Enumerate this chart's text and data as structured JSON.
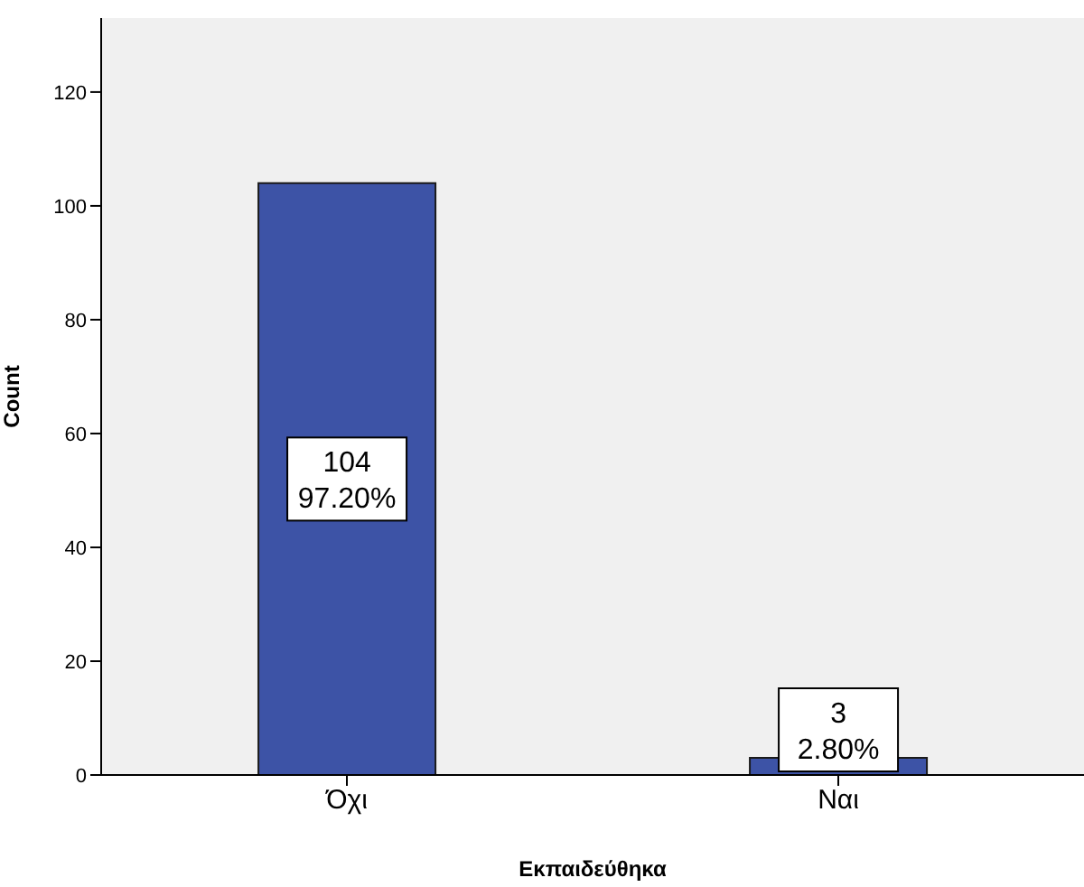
{
  "chart_data": {
    "type": "bar",
    "categories": [
      "Όχι",
      "Ναι"
    ],
    "values": [
      104,
      3
    ],
    "color": "#3d53a6",
    "value_labels": [
      "104\n97.20%",
      "3\n2.80%"
    ],
    "xlabel": "Εκπαιδεύθηκα",
    "ylabel": "Count",
    "ylim": [
      0,
      133
    ],
    "yticks": [
      0,
      20,
      40,
      60,
      80,
      100,
      120
    ],
    "grid": false,
    "legend": false
  }
}
